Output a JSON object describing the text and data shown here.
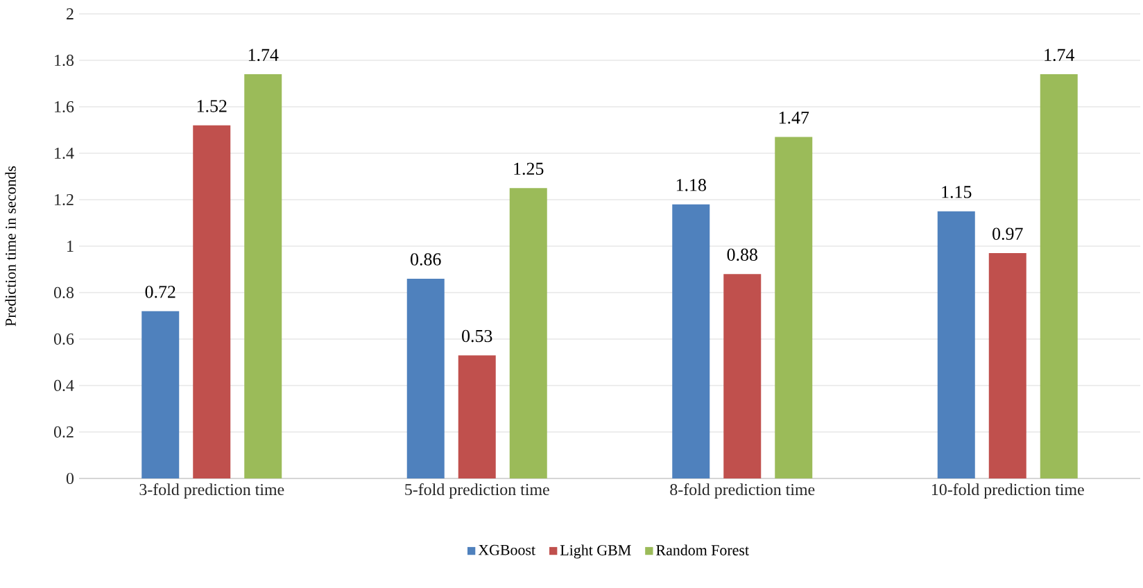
{
  "chart_data": {
    "type": "bar",
    "ylabel": "Prediction time in seconds",
    "categories": [
      "3-fold prediction time",
      "5-fold prediction time",
      "8-fold prediction time",
      "10-fold prediction time"
    ],
    "series": [
      {
        "name": "XGBoost",
        "color": "#4f81bd",
        "values": [
          0.72,
          0.86,
          1.18,
          1.15
        ]
      },
      {
        "name": "Light GBM",
        "color": "#c0504d",
        "values": [
          1.52,
          0.53,
          0.88,
          0.97
        ]
      },
      {
        "name": "Random Forest",
        "color": "#9bbb59",
        "values": [
          1.74,
          1.25,
          1.47,
          1.74
        ]
      }
    ],
    "ylim": [
      0,
      2
    ],
    "yticks": [
      0,
      0.2,
      0.4,
      0.6,
      0.8,
      1,
      1.2,
      1.4,
      1.6,
      1.8,
      2
    ],
    "grid": "y",
    "legend": "bottom",
    "data_labels": true
  }
}
